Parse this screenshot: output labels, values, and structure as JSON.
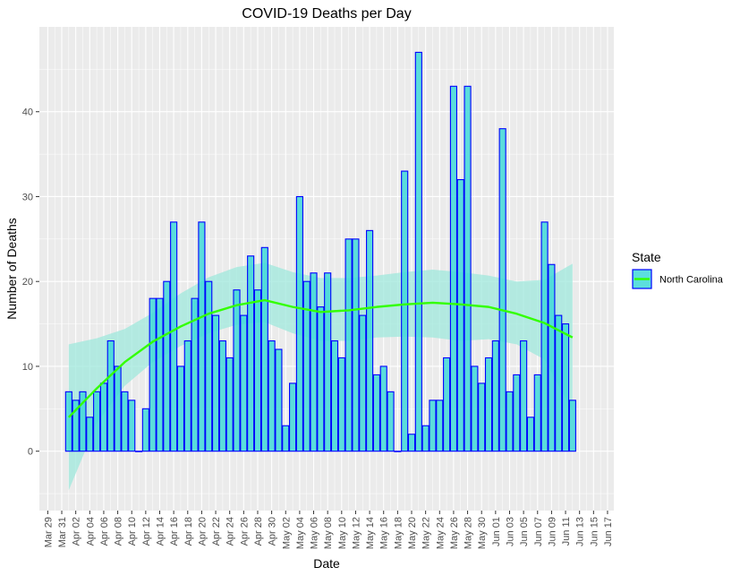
{
  "chart_data": {
    "type": "bar",
    "title": "COVID-19 Deaths per Day",
    "xlabel": "Date",
    "ylabel": "Number of Deaths",
    "ylim": [
      -7,
      50
    ],
    "y_ticks": [
      0,
      10,
      20,
      30,
      40
    ],
    "x_ticks": [
      "Mar 29",
      "Mar 31",
      "Apr 02",
      "Apr 04",
      "Apr 06",
      "Apr 08",
      "Apr 10",
      "Apr 12",
      "Apr 14",
      "Apr 16",
      "Apr 18",
      "Apr 20",
      "Apr 22",
      "Apr 24",
      "Apr 26",
      "Apr 28",
      "Apr 30",
      "May 02",
      "May 04",
      "May 06",
      "May 08",
      "May 10",
      "May 12",
      "May 14",
      "May 16",
      "May 18",
      "May 20",
      "May 22",
      "May 24",
      "May 26",
      "May 28",
      "May 30",
      "Jun 01",
      "Jun 03",
      "Jun 05",
      "Jun 07",
      "Jun 09",
      "Jun 11",
      "Jun 13",
      "Jun 15",
      "Jun 17"
    ],
    "legend": {
      "title": "State",
      "position": "right",
      "entries": [
        "North Carolina"
      ]
    },
    "colors": {
      "bar_fill": "#40d8d8",
      "bar_stroke": "#0000ff",
      "smooth_line": "#33ff00",
      "ribbon": "#9fe8dc",
      "panel": "#ebebeb",
      "grid": "#ffffff"
    },
    "grid": true,
    "series": [
      {
        "name": "North Carolina",
        "x": [
          "Apr 01",
          "Apr 02",
          "Apr 03",
          "Apr 04",
          "Apr 05",
          "Apr 06",
          "Apr 07",
          "Apr 08",
          "Apr 09",
          "Apr 10",
          "Apr 11",
          "Apr 12",
          "Apr 13",
          "Apr 14",
          "Apr 15",
          "Apr 16",
          "Apr 17",
          "Apr 18",
          "Apr 19",
          "Apr 20",
          "Apr 21",
          "Apr 22",
          "Apr 23",
          "Apr 24",
          "Apr 25",
          "Apr 26",
          "Apr 27",
          "Apr 28",
          "Apr 29",
          "Apr 30",
          "May 01",
          "May 02",
          "May 03",
          "May 04",
          "May 05",
          "May 06",
          "May 07",
          "May 08",
          "May 09",
          "May 10",
          "May 11",
          "May 12",
          "May 13",
          "May 14",
          "May 15",
          "May 16",
          "May 17",
          "May 18",
          "May 19",
          "May 20",
          "May 21",
          "May 22",
          "May 23",
          "May 24",
          "May 25",
          "May 26",
          "May 27",
          "May 28",
          "May 29",
          "May 30",
          "May 31",
          "Jun 01",
          "Jun 02",
          "Jun 03",
          "Jun 04",
          "Jun 05",
          "Jun 06",
          "Jun 07",
          "Jun 08",
          "Jun 09",
          "Jun 10",
          "Jun 11",
          "Jun 12"
        ],
        "values": [
          7,
          6,
          7,
          4,
          7,
          8,
          13,
          10,
          7,
          6,
          0,
          5,
          18,
          18,
          20,
          27,
          10,
          13,
          18,
          27,
          20,
          16,
          13,
          11,
          19,
          16,
          23,
          19,
          24,
          13,
          12,
          3,
          8,
          30,
          20,
          21,
          17,
          21,
          13,
          11,
          25,
          25,
          16,
          26,
          9,
          10,
          7,
          0,
          33,
          2,
          47,
          3,
          6,
          6,
          11,
          43,
          32,
          43,
          10,
          8,
          11,
          13,
          38,
          7,
          9,
          13,
          4,
          9,
          27,
          22,
          16,
          15,
          6
        ]
      }
    ],
    "smooth": {
      "x": [
        "Apr 01",
        "Apr 05",
        "Apr 09",
        "Apr 13",
        "Apr 17",
        "Apr 21",
        "Apr 25",
        "Apr 29",
        "May 03",
        "May 07",
        "May 11",
        "May 15",
        "May 19",
        "May 23",
        "May 27",
        "May 31",
        "Jun 04",
        "Jun 08",
        "Jun 12"
      ],
      "y": [
        4.0,
        7.4,
        10.5,
        12.9,
        14.7,
        16.2,
        17.2,
        17.8,
        17.0,
        16.4,
        16.6,
        17.0,
        17.3,
        17.5,
        17.3,
        17.0,
        16.2,
        15.1,
        13.4
      ],
      "lower": [
        -4.6,
        3.3,
        7.7,
        10.5,
        12.4,
        13.9,
        14.9,
        15.2,
        13.9,
        13.0,
        13.0,
        13.4,
        13.5,
        13.4,
        13.0,
        13.2,
        12.6,
        10.8,
        4.7
      ],
      "upper": [
        12.6,
        13.3,
        14.4,
        16.3,
        18.6,
        20.5,
        21.7,
        22.2,
        21.1,
        20.4,
        20.4,
        20.7,
        21.1,
        21.4,
        21.1,
        20.7,
        20.0,
        20.2,
        22.1
      ]
    }
  }
}
